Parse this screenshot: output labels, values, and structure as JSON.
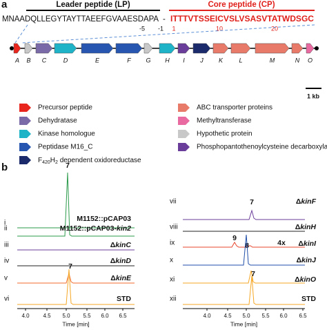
{
  "panel_a": {
    "label": "a",
    "leader": {
      "title": "Leader peptide (LP)",
      "sequence": "MNAADQLLEGYTAYTTAEEFGVAAESDAPA"
    },
    "separator": "-",
    "core": {
      "title": "Core peptide (CP)",
      "sequence": "ITTTVTSSEICVSLVSASVTATWDSGC"
    },
    "positions": [
      "-5",
      "-1",
      "1",
      "10",
      "20"
    ],
    "genes": [
      "A",
      "B",
      "C",
      "D",
      "E",
      "F",
      "G",
      "H",
      "I",
      "J",
      "K",
      "L",
      "M",
      "N",
      "O"
    ],
    "scale_bar": "1 kb",
    "legend": [
      {
        "label": "Precursor peptide"
      },
      {
        "label": "Dehydratase"
      },
      {
        "label": "Kinase homologue"
      },
      {
        "label": "Peptidase M16_C"
      },
      {
        "parts": [
          "F",
          "420",
          "H",
          "2",
          " dependent oxidoreductase"
        ]
      },
      {
        "label": "ABC transporter proteins"
      },
      {
        "label": "Methyltransferase"
      },
      {
        "label": "Hypothetic protein"
      },
      {
        "label": "Phosphopantothenoylcysteine decarboxylase"
      }
    ]
  },
  "panel_b": {
    "label": "b",
    "left": {
      "traces": [
        {
          "id": "i",
          "name": {
            "plain": "M1152::pCAP03"
          }
        },
        {
          "id": "ii",
          "name": {
            "plain": "M1152::pCAP03-",
            "italic": "kin2"
          },
          "peak_labels": [
            "7"
          ]
        },
        {
          "id": "iii",
          "name": {
            "plain": "Δ",
            "italic": "kinC"
          }
        },
        {
          "id": "iv",
          "name": {
            "plain": "Δ",
            "italic": "kinD"
          }
        },
        {
          "id": "v",
          "name": {
            "plain": "Δ",
            "italic": "kinE"
          },
          "peak_labels": [
            "7"
          ]
        },
        {
          "id": "vi",
          "name": {
            "plain": "STD"
          }
        }
      ],
      "xticks": [
        "4.0",
        "4.5",
        "5.0",
        "5.5",
        "6.0",
        "6.5"
      ],
      "xlabel": "Time [min]"
    },
    "right": {
      "traces": [
        {
          "id": "vii",
          "name": {
            "plain": "Δ",
            "italic": "kinF"
          },
          "peak_labels": [
            "7"
          ]
        },
        {
          "id": "viii",
          "name": {
            "plain": "Δ",
            "italic": "kinH"
          }
        },
        {
          "id": "ix",
          "name": {
            "plain": "Δ",
            "italic": "kinI"
          },
          "peak_labels": [
            "9",
            "8",
            "4x"
          ]
        },
        {
          "id": "x",
          "name": {
            "plain": "Δ",
            "italic": "kinJ"
          }
        },
        {
          "id": "xi",
          "name": {
            "plain": "Δ",
            "italic": "kinO"
          },
          "peak_labels": [
            "7"
          ]
        },
        {
          "id": "xii",
          "name": {
            "plain": "STD"
          }
        }
      ],
      "xticks": [
        "4.0",
        "4.5",
        "5.0",
        "5.5",
        "6.0",
        "6.5"
      ],
      "xlabel": "Time [min]"
    }
  }
}
